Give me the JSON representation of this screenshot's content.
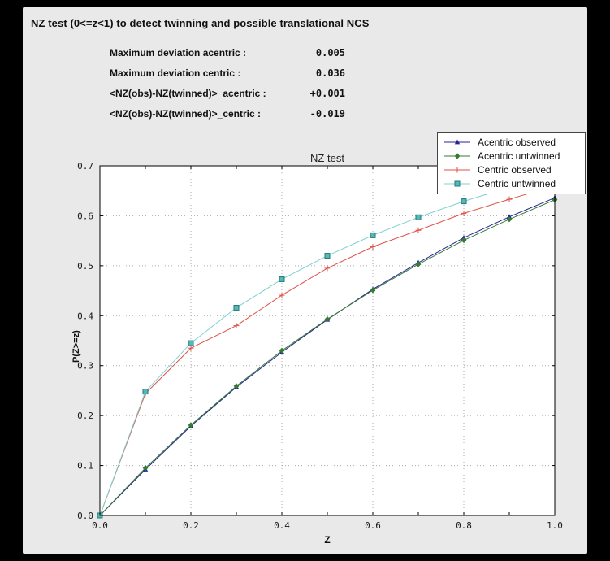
{
  "window": {
    "title": "NZ test (0<=z<1) to detect twinning and possible translational NCS"
  },
  "stats": {
    "rows": [
      {
        "label": "Maximum deviation acentric :",
        "value": "0.005"
      },
      {
        "label": "Maximum deviation centric :",
        "value": "0.036"
      },
      {
        "label": "<NZ(obs)-NZ(twinned)>_acentric :",
        "value": "+0.001"
      },
      {
        "label": "<NZ(obs)-NZ(twinned)>_centric :",
        "value": "-0.019"
      }
    ]
  },
  "chart_data": {
    "type": "line",
    "title": "NZ test",
    "xlabel": "Z",
    "ylabel": "P(Z>=z)",
    "xlim": [
      0.0,
      1.0
    ],
    "ylim": [
      0.0,
      0.7
    ],
    "xticks": [
      0.0,
      0.2,
      0.4,
      0.6,
      0.8,
      1.0
    ],
    "yticks": [
      0.0,
      0.1,
      0.2,
      0.3,
      0.4,
      0.5,
      0.6,
      0.7
    ],
    "grid": true,
    "legend_position": "upper right",
    "x": [
      0.0,
      0.1,
      0.2,
      0.3,
      0.4,
      0.5,
      0.6,
      0.7,
      0.8,
      0.9,
      1.0
    ],
    "series": [
      {
        "name": "Acentric observed",
        "color": "#242492",
        "marker": "triangle",
        "values": [
          0.0,
          0.092,
          0.179,
          0.257,
          0.327,
          0.392,
          0.453,
          0.506,
          0.556,
          0.598,
          0.636
        ]
      },
      {
        "name": "Acentric untwinned",
        "color": "#377a37",
        "marker": "diamond",
        "values": [
          0.0,
          0.095,
          0.181,
          0.259,
          0.33,
          0.393,
          0.451,
          0.503,
          0.551,
          0.593,
          0.632
        ]
      },
      {
        "name": "Centric observed",
        "color": "#e0524a",
        "marker": "plus",
        "values": [
          0.0,
          0.244,
          0.335,
          0.38,
          0.441,
          0.495,
          0.538,
          0.571,
          0.605,
          0.633,
          0.66
        ]
      },
      {
        "name": "Centric untwinned",
        "color": "#7fd0d0",
        "marker": "square",
        "marker_fill": "#55b8b8",
        "marker_edge": "#267878",
        "values": [
          0.0,
          0.248,
          0.345,
          0.416,
          0.473,
          0.52,
          0.561,
          0.597,
          0.629,
          0.657,
          0.683
        ]
      }
    ]
  }
}
